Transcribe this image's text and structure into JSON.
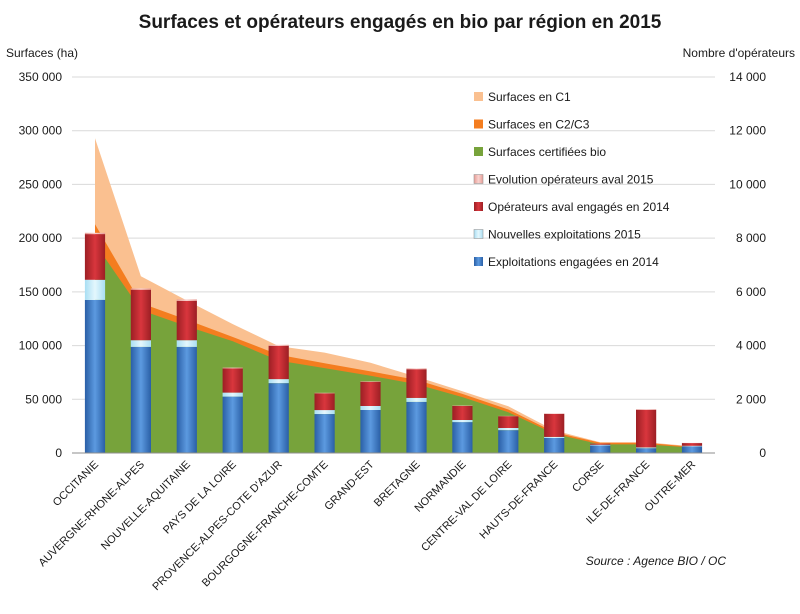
{
  "chart_data": {
    "type": "bar",
    "title": "Surfaces et opérateurs engagés en bio par région en 2015",
    "ylabel_left": "Surfaces (ha)",
    "ylabel_right": "Nombre d'opérateurs",
    "source": "Source : Agence BIO / OC",
    "ylim_left": [
      0,
      350000
    ],
    "ylim_right": [
      0,
      14000
    ],
    "yticks_left": [
      "0",
      "50 000",
      "100 000",
      "150 000",
      "200 000",
      "250 000",
      "300 000",
      "350 000"
    ],
    "yticks_right": [
      "0",
      "2 000",
      "4 000",
      "6 000",
      "8 000",
      "10 000",
      "12 000",
      "14 000"
    ],
    "grid": true,
    "legend_position": "top-right",
    "categories": [
      "OCCITANIE",
      "AUVERGNE-RHONE-ALPES",
      "NOUVELLE-AQUITAINE",
      "PAYS DE LA LOIRE",
      "PROVENCE-ALPES-COTE D'AZUR",
      "BOURGOGNE-FRANCHE-COMTE",
      "GRAND-EST",
      "BRETAGNE",
      "NORMANDIE",
      "CENTRE-VAL DE LOIRE",
      "HAUTS-DE-FRANCE",
      "CORSE",
      "ILE-DE-FRANCE",
      "OUTRE-MER"
    ],
    "area_series": [
      {
        "name": "Surfaces en C1",
        "color": "#fac090",
        "values": [
          80000,
          25000,
          18000,
          12000,
          8000,
          10000,
          8000,
          3000,
          2500,
          3000,
          1500,
          500,
          500,
          500
        ]
      },
      {
        "name": "Surfaces en C2/C3",
        "color": "#f47d1f",
        "values": [
          18000,
          6500,
          6000,
          4000,
          5500,
          4500,
          4000,
          4000,
          3000,
          2500,
          1500,
          1500,
          1500,
          700
        ]
      },
      {
        "name": "Surfaces certifiées bio",
        "color": "#77a33b",
        "values": [
          195000,
          133000,
          118000,
          104000,
          86000,
          79000,
          72000,
          64000,
          52000,
          38000,
          18000,
          8000,
          8000,
          5000
        ]
      }
    ],
    "bar_series": [
      {
        "name": "Evolution opérateurs aval 2015",
        "color": "#f4b6b0",
        "values": [
          50,
          50,
          60,
          30,
          40,
          20,
          20,
          30,
          15,
          10,
          10,
          5,
          20,
          5
        ]
      },
      {
        "name": "Opérateurs aval engagés en 2014",
        "color": "#c0282e",
        "values": [
          1700,
          1880,
          1460,
          900,
          1240,
          620,
          900,
          1070,
          520,
          440,
          860,
          40,
          1400,
          100
        ]
      },
      {
        "name": "Nouvelles exploitations 2015",
        "color": "#c6ecfa",
        "values": [
          750,
          250,
          250,
          150,
          150,
          150,
          150,
          150,
          80,
          80,
          40,
          30,
          30,
          20
        ]
      },
      {
        "name": "Exploitations engagées en 2014",
        "color": "#3b79c7",
        "values": [
          5700,
          3950,
          3950,
          2100,
          2600,
          1450,
          1600,
          1900,
          1150,
          850,
          560,
          280,
          180,
          250
        ]
      }
    ]
  }
}
